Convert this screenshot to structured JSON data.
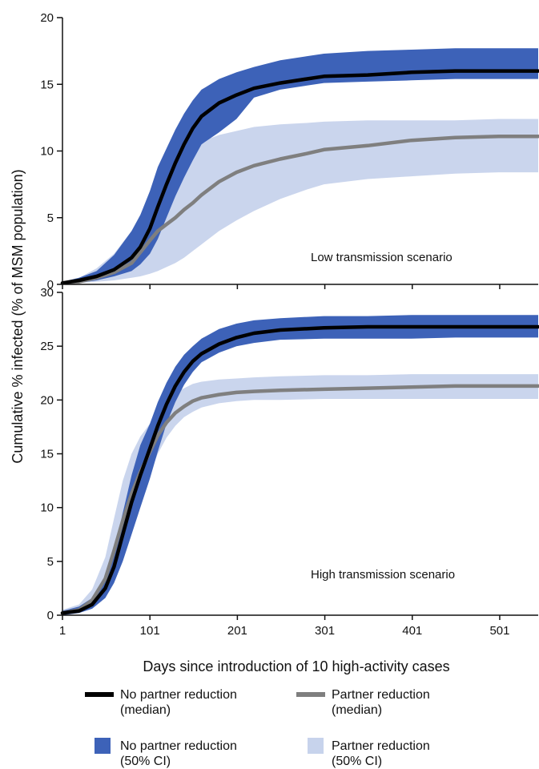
{
  "chart_data": {
    "type": "line",
    "ylabel": "Cumulative % infected (% of MSM population)",
    "xlabel": "Days since introduction of 10 high-activity cases",
    "xlim": [
      1,
      545
    ],
    "x_ticks": [
      1,
      101,
      201,
      301,
      401,
      501
    ],
    "legend_placement": "bottom",
    "legend": [
      {
        "label_line1": "No partner reduction",
        "label_line2": "(median)",
        "kind": "line",
        "color": "#000000"
      },
      {
        "label_line1": "Partner reduction",
        "label_line2": "(median)",
        "kind": "line",
        "color": "#7f7f7f"
      },
      {
        "label_line1": "No partner reduction",
        "label_line2": "(50% CI)",
        "kind": "band",
        "color": "#3d62b8"
      },
      {
        "label_line1": "Partner reduction",
        "label_line2": "(50% CI)",
        "kind": "band",
        "color": "#c7d3ec"
      }
    ],
    "panels": [
      {
        "label": "Low transmission scenario",
        "ylim": [
          0,
          20
        ],
        "y_ticks": [
          0,
          5,
          10,
          15,
          20
        ],
        "series": [
          {
            "key": "no_reduction",
            "color": "#000000",
            "band_color": "#3d62b8",
            "x": [
              1,
              20,
              40,
              60,
              80,
              90,
              101,
              110,
              120,
              130,
              140,
              150,
              160,
              180,
              200,
              220,
              250,
              280,
              300,
              350,
              400,
              450,
              500,
              545
            ],
            "y": [
              0.1,
              0.3,
              0.6,
              1.1,
              2.0,
              2.8,
              4.2,
              5.8,
              7.5,
              9.1,
              10.5,
              11.7,
              12.6,
              13.6,
              14.2,
              14.7,
              15.1,
              15.4,
              15.6,
              15.7,
              15.9,
              16.0,
              16.0,
              16.0
            ],
            "lower": [
              0.0,
              0.1,
              0.3,
              0.6,
              1.0,
              1.5,
              2.3,
              3.4,
              5.0,
              6.6,
              8.0,
              9.3,
              10.5,
              11.4,
              12.4,
              14.0,
              14.6,
              14.9,
              15.1,
              15.2,
              15.3,
              15.4,
              15.4,
              15.4
            ],
            "upper": [
              0.2,
              0.5,
              1.0,
              2.2,
              4.0,
              5.2,
              7.0,
              8.8,
              10.2,
              11.6,
              12.8,
              13.8,
              14.6,
              15.4,
              15.9,
              16.3,
              16.8,
              17.1,
              17.3,
              17.5,
              17.6,
              17.7,
              17.7,
              17.7
            ]
          },
          {
            "key": "partner_reduction",
            "color": "#7f7f7f",
            "band_color": "#c7d3ec",
            "x": [
              1,
              20,
              40,
              60,
              80,
              90,
              101,
              110,
              120,
              130,
              140,
              150,
              160,
              180,
              200,
              220,
              250,
              280,
              300,
              350,
              400,
              450,
              500,
              545
            ],
            "y": [
              0.1,
              0.2,
              0.5,
              0.9,
              1.6,
              2.4,
              3.3,
              4.0,
              4.5,
              5.0,
              5.6,
              6.1,
              6.7,
              7.7,
              8.4,
              8.9,
              9.4,
              9.8,
              10.1,
              10.4,
              10.8,
              11.0,
              11.1,
              11.1
            ],
            "lower": [
              0.0,
              0.1,
              0.2,
              0.3,
              0.5,
              0.6,
              0.8,
              1.0,
              1.3,
              1.6,
              2.0,
              2.5,
              3.0,
              4.0,
              4.8,
              5.5,
              6.4,
              7.1,
              7.5,
              7.9,
              8.1,
              8.3,
              8.4,
              8.4
            ],
            "upper": [
              0.2,
              0.5,
              1.2,
              2.3,
              4.0,
              5.2,
              6.4,
              7.5,
              8.4,
              9.2,
              9.8,
              10.3,
              10.7,
              11.2,
              11.5,
              11.8,
              12.0,
              12.1,
              12.2,
              12.3,
              12.3,
              12.3,
              12.4,
              12.4
            ]
          }
        ]
      },
      {
        "label": "High transmission scenario",
        "ylim": [
          0,
          30
        ],
        "y_ticks": [
          0,
          5,
          10,
          15,
          20,
          25,
          30
        ],
        "series": [
          {
            "key": "no_reduction",
            "color": "#000000",
            "band_color": "#3d62b8",
            "x": [
              1,
              20,
              35,
              50,
              60,
              70,
              80,
              90,
              101,
              110,
              120,
              130,
              140,
              150,
              160,
              180,
              200,
              220,
              250,
              300,
              350,
              400,
              450,
              545
            ],
            "y": [
              0.2,
              0.4,
              1.0,
              2.5,
              4.5,
              7.5,
              10.5,
              13.0,
              15.5,
              17.6,
              19.6,
              21.3,
              22.6,
              23.6,
              24.3,
              25.2,
              25.8,
              26.2,
              26.5,
              26.7,
              26.8,
              26.8,
              26.8,
              26.8
            ],
            "lower": [
              0.0,
              0.2,
              0.6,
              1.6,
              3.0,
              5.0,
              7.5,
              10.0,
              12.7,
              15.2,
              17.8,
              19.8,
              21.4,
              22.6,
              23.5,
              24.4,
              25.0,
              25.3,
              25.6,
              25.7,
              25.7,
              25.7,
              25.8,
              25.8
            ],
            "upper": [
              0.4,
              0.8,
              1.6,
              3.6,
              6.0,
              9.5,
              13.0,
              15.8,
              17.8,
              19.8,
              21.6,
              23.1,
              24.2,
              25.0,
              25.7,
              26.6,
              27.1,
              27.4,
              27.6,
              27.8,
              27.8,
              27.9,
              27.9,
              27.9
            ]
          },
          {
            "key": "partner_reduction",
            "color": "#7f7f7f",
            "band_color": "#c7d3ec",
            "x": [
              1,
              20,
              35,
              50,
              60,
              70,
              80,
              90,
              101,
              110,
              120,
              130,
              140,
              150,
              160,
              180,
              200,
              220,
              250,
              300,
              350,
              400,
              450,
              545
            ],
            "y": [
              0.2,
              0.5,
              1.4,
              3.4,
              6.0,
              8.8,
              11.3,
              13.3,
              15.2,
              16.7,
              17.9,
              18.8,
              19.4,
              19.9,
              20.2,
              20.5,
              20.7,
              20.8,
              20.9,
              21.0,
              21.1,
              21.2,
              21.3,
              21.3
            ],
            "lower": [
              0.0,
              0.2,
              0.8,
              2.0,
              3.8,
              6.0,
              8.6,
              11.0,
              13.2,
              15.0,
              16.5,
              17.6,
              18.4,
              18.9,
              19.3,
              19.7,
              19.9,
              20.0,
              20.0,
              20.1,
              20.1,
              20.1,
              20.1,
              20.1
            ],
            "upper": [
              0.5,
              1.0,
              2.4,
              5.4,
              9.0,
              12.5,
              15.0,
              16.6,
              17.8,
              18.9,
              19.9,
              20.6,
              21.1,
              21.5,
              21.7,
              21.9,
              22.0,
              22.1,
              22.2,
              22.3,
              22.3,
              22.4,
              22.4,
              22.4
            ]
          }
        ]
      }
    ]
  }
}
